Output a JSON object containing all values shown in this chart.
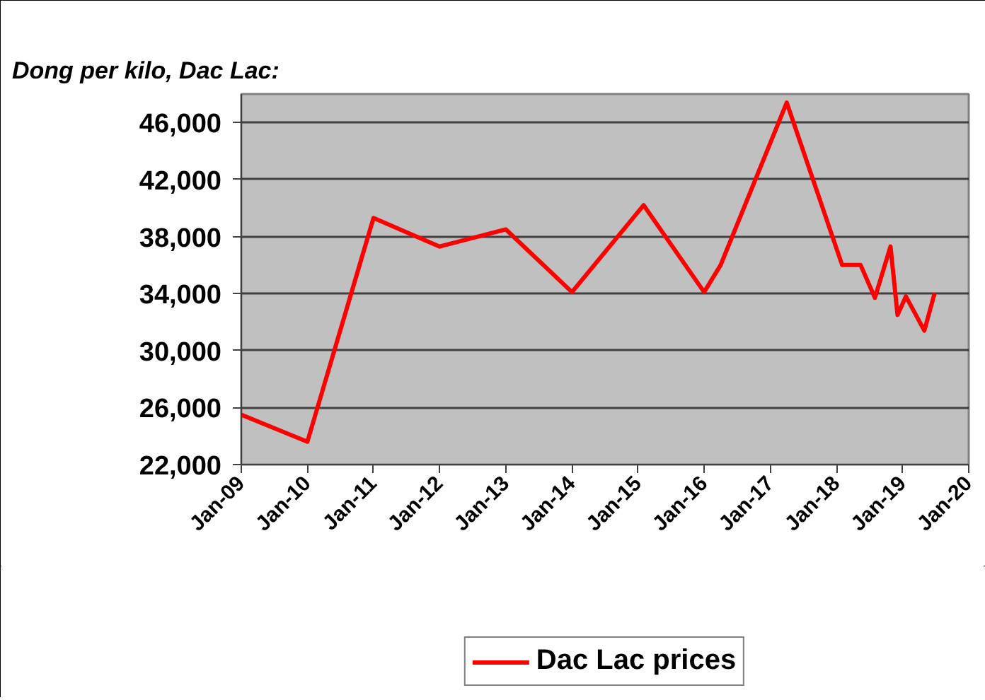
{
  "chart_data": {
    "type": "line",
    "title": "Dong per kilo, Dac Lac:",
    "x": [
      "2009-01",
      "2010-01",
      "2011-01",
      "2012-01",
      "2013-01",
      "2014-01",
      "2015-02",
      "2016-01",
      "2016-04",
      "2017-04",
      "2018-02-01",
      "2018-05-14",
      "2018-08-01",
      "2018-10-26",
      "2018-12-04",
      "2019-01-19",
      "2019-05-01",
      "2019-06-24"
    ],
    "series": [
      {
        "name": "Dac Lac prices",
        "color": "#ff0000",
        "values": [
          25500,
          23600,
          39300,
          37300,
          38500,
          34100,
          40200,
          34100,
          36000,
          47400,
          36000,
          36000,
          33700,
          37300,
          32500,
          33800,
          31400,
          33900
        ]
      }
    ],
    "xlim": [
      "2009-01",
      "2020-01"
    ],
    "xticks": [
      {
        "value": "2009-01",
        "label": "Jan-09"
      },
      {
        "value": "2010-01",
        "label": "Jan-10"
      },
      {
        "value": "2011-01",
        "label": "Jan-11"
      },
      {
        "value": "2012-01",
        "label": "Jan-12"
      },
      {
        "value": "2013-01",
        "label": "Jan-13"
      },
      {
        "value": "2014-01",
        "label": "Jan-14"
      },
      {
        "value": "2015-01",
        "label": "Jan-15"
      },
      {
        "value": "2016-01",
        "label": "Jan-16"
      },
      {
        "value": "2017-01",
        "label": "Jan-17"
      },
      {
        "value": "2018-01",
        "label": "Jan-18"
      },
      {
        "value": "2019-01",
        "label": "Jan-19"
      },
      {
        "value": "2020-01",
        "label": "Jan-20"
      }
    ],
    "ylim": [
      22000,
      48000
    ],
    "yticks": [
      {
        "value": 22000,
        "label": "22,000"
      },
      {
        "value": 26000,
        "label": "26,000"
      },
      {
        "value": 30000,
        "label": "30,000"
      },
      {
        "value": 34000,
        "label": "34,000"
      },
      {
        "value": 38000,
        "label": "38,000"
      },
      {
        "value": 42000,
        "label": "42,000"
      },
      {
        "value": 46000,
        "label": "46,000"
      }
    ],
    "grid": "y",
    "legend": "bottom",
    "marker": "none",
    "line_style": "solid"
  }
}
